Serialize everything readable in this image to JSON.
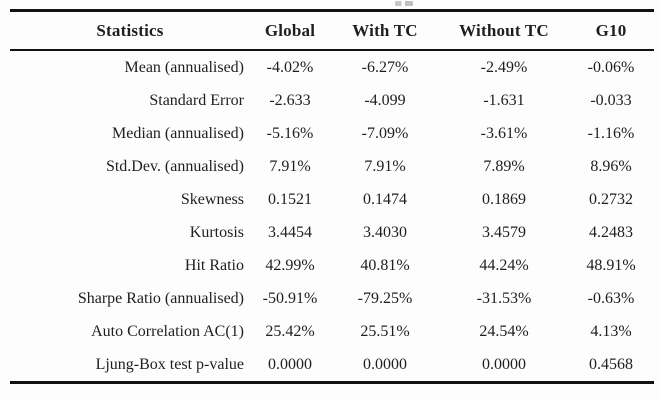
{
  "table": {
    "header": {
      "statistics": "Statistics",
      "global": "Global",
      "with_tc": "With TC",
      "without_tc": "Without TC",
      "g10": "G10"
    },
    "rows": [
      {
        "label": "Mean (annualised)",
        "values": [
          "-4.02%",
          "-6.27%",
          "-2.49%",
          "-0.06%"
        ]
      },
      {
        "label": "Standard Error",
        "values": [
          "-2.633",
          "-4.099",
          "-1.631",
          "-0.033"
        ]
      },
      {
        "label": "Median (annualised)",
        "values": [
          "-5.16%",
          "-7.09%",
          "-3.61%",
          "-1.16%"
        ]
      },
      {
        "label": "Std.Dev. (annualised)",
        "values": [
          "7.91%",
          "7.91%",
          "7.89%",
          "8.96%"
        ]
      },
      {
        "label": "Skewness",
        "values": [
          "0.1521",
          "0.1474",
          "0.1869",
          "0.2732"
        ]
      },
      {
        "label": "Kurtosis",
        "values": [
          "3.4454",
          "3.4030",
          "3.4579",
          "4.2483"
        ]
      },
      {
        "label": "Hit Ratio",
        "values": [
          "42.99%",
          "40.81%",
          "44.24%",
          "48.91%"
        ]
      },
      {
        "label": "Sharpe Ratio (annualised)",
        "values": [
          "-50.91%",
          "-79.25%",
          "-31.53%",
          "-0.63%"
        ]
      },
      {
        "label": "Auto Correlation AC(1)",
        "values": [
          "25.42%",
          "25.51%",
          "24.54%",
          "4.13%"
        ]
      },
      {
        "label": "Ljung-Box test p-value",
        "values": [
          "0.0000",
          "0.0000",
          "0.0000",
          "0.4568"
        ]
      }
    ]
  },
  "colors": {
    "rule": "#121212",
    "text": "#1e1e1e",
    "background": "#fdfdfd"
  }
}
